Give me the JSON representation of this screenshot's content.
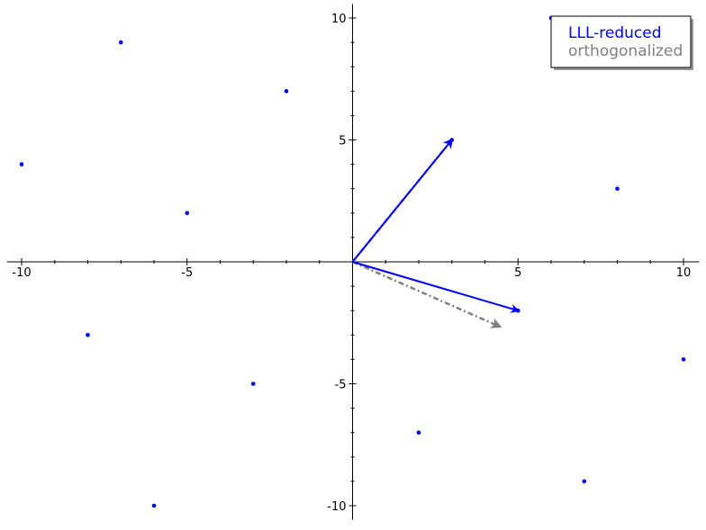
{
  "chart_data": {
    "type": "scatter",
    "xlim": [
      -10.5,
      10.5
    ],
    "ylim": [
      -10.5,
      10.5
    ],
    "x_ticks": [
      -10,
      -5,
      5,
      10
    ],
    "y_ticks": [
      -10,
      -5,
      5,
      10
    ],
    "x_tick_labels": [
      "-10",
      "-5",
      "5",
      "10"
    ],
    "y_tick_labels": [
      "-10",
      "-5",
      "5",
      "10"
    ],
    "grid": false,
    "legend_position": "top-right",
    "points_color": "#0000ff",
    "points": [
      {
        "x": -7,
        "y": 9
      },
      {
        "x": -2,
        "y": 7
      },
      {
        "x": -10,
        "y": 4
      },
      {
        "x": -5,
        "y": 2
      },
      {
        "x": 3,
        "y": 5
      },
      {
        "x": 6,
        "y": 10
      },
      {
        "x": 8,
        "y": 3
      },
      {
        "x": 5,
        "y": -2
      },
      {
        "x": 10,
        "y": -4
      },
      {
        "x": -8,
        "y": -3
      },
      {
        "x": -3,
        "y": -5
      },
      {
        "x": 2,
        "y": -7
      },
      {
        "x": 7,
        "y": -9
      },
      {
        "x": -6,
        "y": -10
      }
    ],
    "series": [
      {
        "name": "LLL-reduced",
        "color": "#0000ff",
        "style": "solid",
        "vectors": [
          {
            "from": [
              0,
              0
            ],
            "to": [
              3,
              5
            ]
          },
          {
            "from": [
              0,
              0
            ],
            "to": [
              5,
              -2
            ]
          }
        ]
      },
      {
        "name": "orthogonalized",
        "color": "#808080",
        "style": "dashdot",
        "vectors": [
          {
            "from": [
              0,
              0
            ],
            "to": [
              3,
              5
            ]
          },
          {
            "from": [
              0,
              0
            ],
            "to": [
              4.44,
              -2.65
            ]
          }
        ]
      }
    ]
  }
}
